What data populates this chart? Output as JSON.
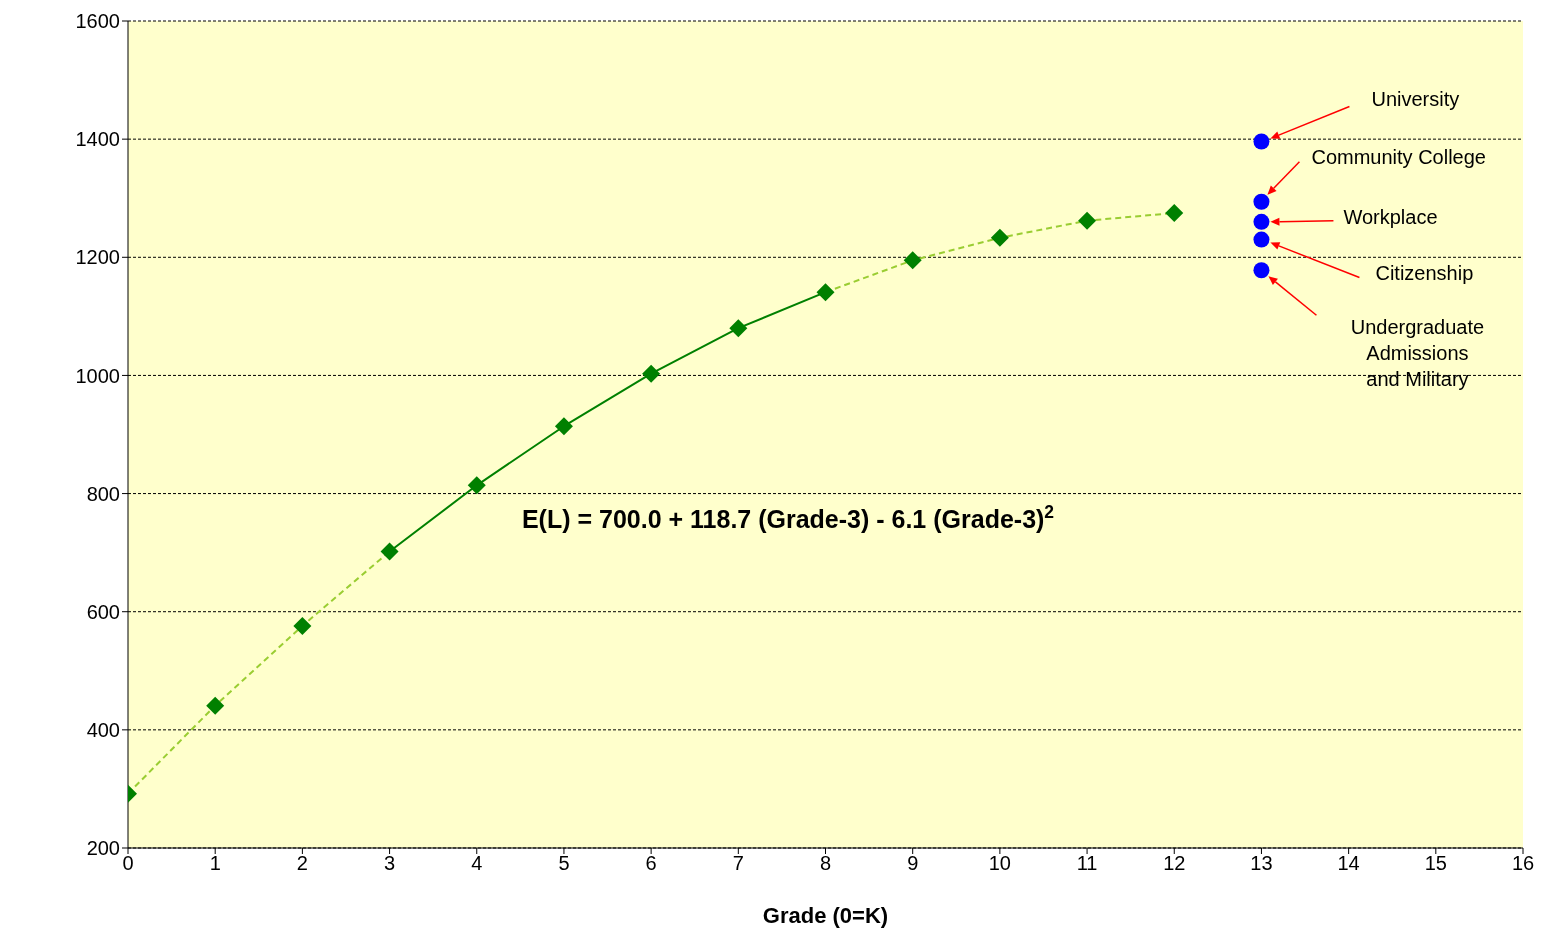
{
  "chart_data": {
    "type": "line",
    "xlabel": "Grade (0=K)",
    "xlim": [
      0,
      16
    ],
    "xticks": [
      0,
      1,
      2,
      3,
      4,
      5,
      6,
      7,
      8,
      9,
      10,
      11,
      12,
      13,
      14,
      15,
      16
    ],
    "ylim": [
      200,
      1600
    ],
    "yticks": [
      200,
      400,
      600,
      800,
      1000,
      1200,
      1400,
      1600
    ],
    "grid": "y",
    "series": [
      {
        "type": "line",
        "x": [
          0,
          1,
          2,
          3
        ],
        "values": [
          292,
          441,
          576,
          702
        ],
        "color": "#9acd32",
        "line_style": "dashed",
        "marker": "none"
      },
      {
        "type": "line",
        "x": [
          3,
          4,
          5,
          6,
          7,
          8
        ],
        "values": [
          702,
          814,
          914,
          1003,
          1080,
          1141
        ],
        "color": "#008000",
        "line_style": "solid",
        "marker": "none"
      },
      {
        "type": "line",
        "x": [
          8,
          9,
          10,
          11,
          12
        ],
        "values": [
          1141,
          1195,
          1233,
          1262,
          1275
        ],
        "color": "#9acd32",
        "line_style": "dashed",
        "marker": "none"
      },
      {
        "type": "scatter",
        "x": [
          0,
          1,
          2,
          3,
          4,
          5,
          6,
          7,
          8,
          9,
          10,
          11,
          12
        ],
        "values": [
          292,
          441,
          576,
          702,
          814,
          914,
          1003,
          1080,
          1141,
          1195,
          1233,
          1262,
          1275
        ],
        "color": "#008000",
        "marker": "diamond"
      },
      {
        "type": "scatter",
        "x": [
          13,
          13,
          13,
          13,
          13
        ],
        "values": [
          1396,
          1294,
          1260,
          1230,
          1178
        ],
        "color": "#0000ff",
        "marker": "circle"
      }
    ],
    "annotations": [
      "E(L) = 700.0 + 118.7 (Grade-3) - 6.1 (Grade-3)$^{2}$",
      "University",
      "Community College",
      "Workplace",
      "Citizenship",
      "Undergraduate Admissions and Military"
    ]
  }
}
